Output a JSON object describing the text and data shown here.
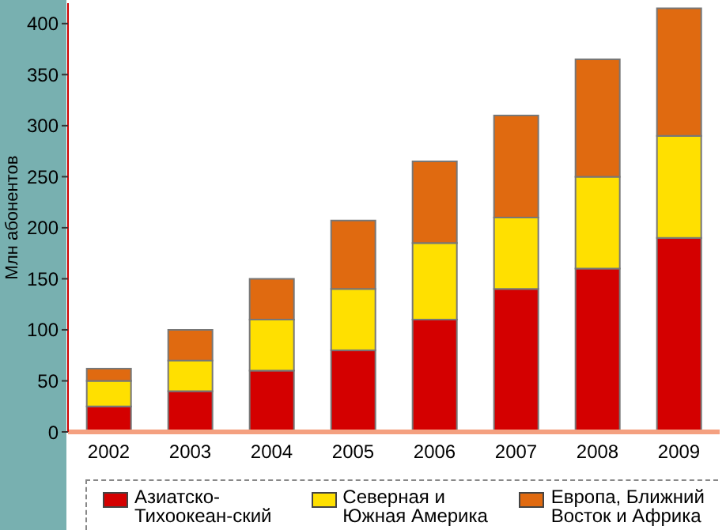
{
  "chart_data": {
    "type": "bar",
    "stacked": true,
    "ylabel": "Млн абонентов",
    "categories": [
      "2002",
      "2003",
      "2004",
      "2005",
      "2006",
      "2007",
      "2008",
      "2009"
    ],
    "series": [
      {
        "name": "Азиатско-Тихоокеан-ский регион",
        "color": "#d40000",
        "values": [
          25,
          40,
          60,
          80,
          110,
          140,
          160,
          190
        ]
      },
      {
        "name": "Северная и Южная Америка",
        "color": "#ffe000",
        "values": [
          25,
          30,
          50,
          60,
          75,
          70,
          90,
          100
        ]
      },
      {
        "name": "Европа, Ближний Восток и Африка",
        "color": "#e06a10",
        "values": [
          12,
          30,
          40,
          67,
          80,
          100,
          115,
          125
        ]
      }
    ],
    "ylim": [
      0,
      420
    ],
    "yticks": [
      0,
      50,
      100,
      150,
      200,
      250,
      300,
      350,
      400
    ],
    "grid": false,
    "legend": "bottom"
  }
}
